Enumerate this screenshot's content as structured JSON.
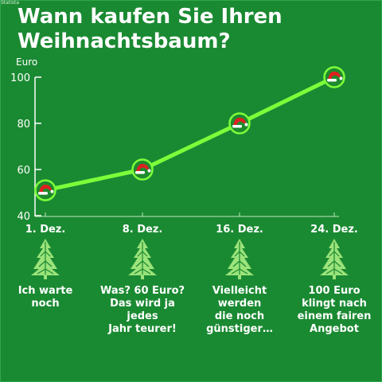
{
  "watermark": "Statista",
  "title": "Wann kaufen Sie Ihren Weihnachtsbaum?",
  "colors": {
    "background": "#1a8a32",
    "line": "#7dff3a",
    "marker_fill": "#1e8a2e",
    "hat_red": "#e02020",
    "hat_white": "#ffffff",
    "tree": "#9be37a",
    "text": "#ffffff"
  },
  "icons": {
    "marker": "santa-hat-icon",
    "tree": "christmas-tree-icon"
  },
  "chart_data": {
    "type": "line",
    "ylabel": "Euro",
    "ylim": [
      40,
      100
    ],
    "yticks": [
      40,
      60,
      80,
      100
    ],
    "categories": [
      "1. Dez.",
      "8. Dez.",
      "16. Dez.",
      "24. Dez."
    ],
    "values": [
      51,
      60,
      80,
      100
    ],
    "captions": [
      "Ich warte\nnoch",
      "Was? 60 Euro?\nDas wird ja jedes\nJahr teurer!",
      "Vielleicht\nwerden\ndie noch\ngünstiger…",
      "100 Euro\nklingt nach\neinem fairen\nAngebot"
    ]
  }
}
